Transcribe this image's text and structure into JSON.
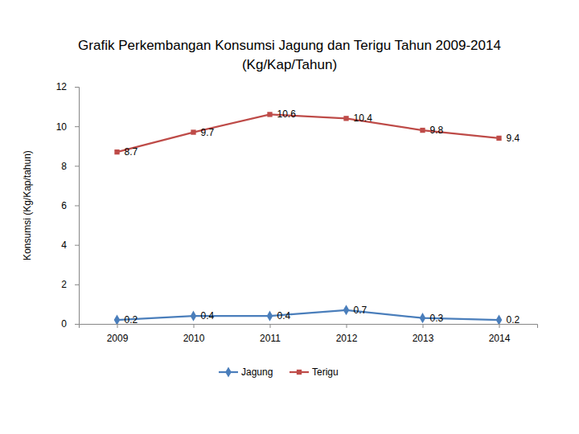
{
  "chart_data": {
    "type": "line",
    "title": [
      "Grafik Perkembangan Konsumsi Jagung dan Terigu Tahun 2009-2014",
      "(Kg/Kap/Tahun)"
    ],
    "y_label": "Konsumsi (Kg/Kap/tahun)",
    "categories": [
      "2009",
      "2010",
      "2011",
      "2012",
      "2013",
      "2014"
    ],
    "series": [
      {
        "name": "Jagung",
        "color": "#4a7ebb",
        "marker": "diamond",
        "line_style": "solid",
        "values": [
          0.2,
          0.4,
          0.4,
          0.7,
          0.3,
          0.2
        ]
      },
      {
        "name": "Terigu",
        "color": "#be4b48",
        "marker": "square",
        "line_style": "solid",
        "values": [
          8.7,
          9.7,
          10.6,
          10.4,
          9.8,
          9.4
        ]
      }
    ],
    "ylim": [
      0,
      12
    ],
    "yticks": [
      0,
      2,
      4,
      6,
      8,
      10,
      12
    ],
    "grid": false,
    "data_labels": true,
    "legend": "bottom"
  }
}
